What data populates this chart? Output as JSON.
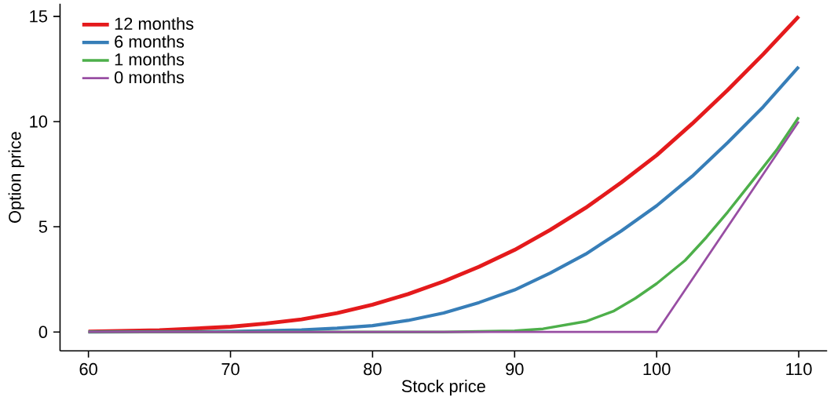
{
  "chart_data": {
    "type": "line",
    "xlabel": "Stock price",
    "ylabel": "Option price",
    "xlim": [
      58,
      112
    ],
    "ylim": [
      -0.9,
      15.6
    ],
    "xticks": [
      60,
      70,
      80,
      90,
      100,
      110
    ],
    "yticks": [
      0,
      5,
      10,
      15
    ],
    "legend": "top left",
    "grid": false,
    "marker": "none",
    "line_style": "solid",
    "series": [
      {
        "name": "12 months",
        "color": "#e41a1c",
        "x": [
          60,
          65,
          70,
          72.5,
          75,
          77.5,
          80,
          82.5,
          85,
          87.5,
          90,
          92.5,
          95,
          97.5,
          100,
          102.5,
          105,
          107.5,
          110
        ],
        "values": [
          0.02,
          0.08,
          0.25,
          0.4,
          0.6,
          0.9,
          1.3,
          1.8,
          2.4,
          3.1,
          3.9,
          4.85,
          5.9,
          7.1,
          8.4,
          9.9,
          11.5,
          13.2,
          15.0
        ]
      },
      {
        "name": "6 months",
        "color": "#377eb8",
        "x": [
          60,
          70,
          75,
          77.5,
          80,
          82.5,
          85,
          87.5,
          90,
          92.5,
          95,
          97.5,
          100,
          102.5,
          105,
          107.5,
          110
        ],
        "values": [
          0,
          0.02,
          0.1,
          0.18,
          0.3,
          0.55,
          0.9,
          1.4,
          2.0,
          2.8,
          3.7,
          4.8,
          6.0,
          7.4,
          9.0,
          10.7,
          12.6
        ]
      },
      {
        "name": "1 months",
        "color": "#4daf4a",
        "x": [
          60,
          85,
          90,
          92,
          95,
          97,
          98.5,
          100,
          102,
          103.5,
          105,
          107,
          108.5,
          110
        ],
        "values": [
          0,
          0,
          0.05,
          0.15,
          0.5,
          1.0,
          1.6,
          2.3,
          3.4,
          4.5,
          5.7,
          7.4,
          8.7,
          10.2
        ]
      },
      {
        "name": "0 months",
        "color": "#984ea3",
        "x": [
          60,
          100,
          110
        ],
        "values": [
          0,
          0,
          10
        ]
      }
    ]
  }
}
